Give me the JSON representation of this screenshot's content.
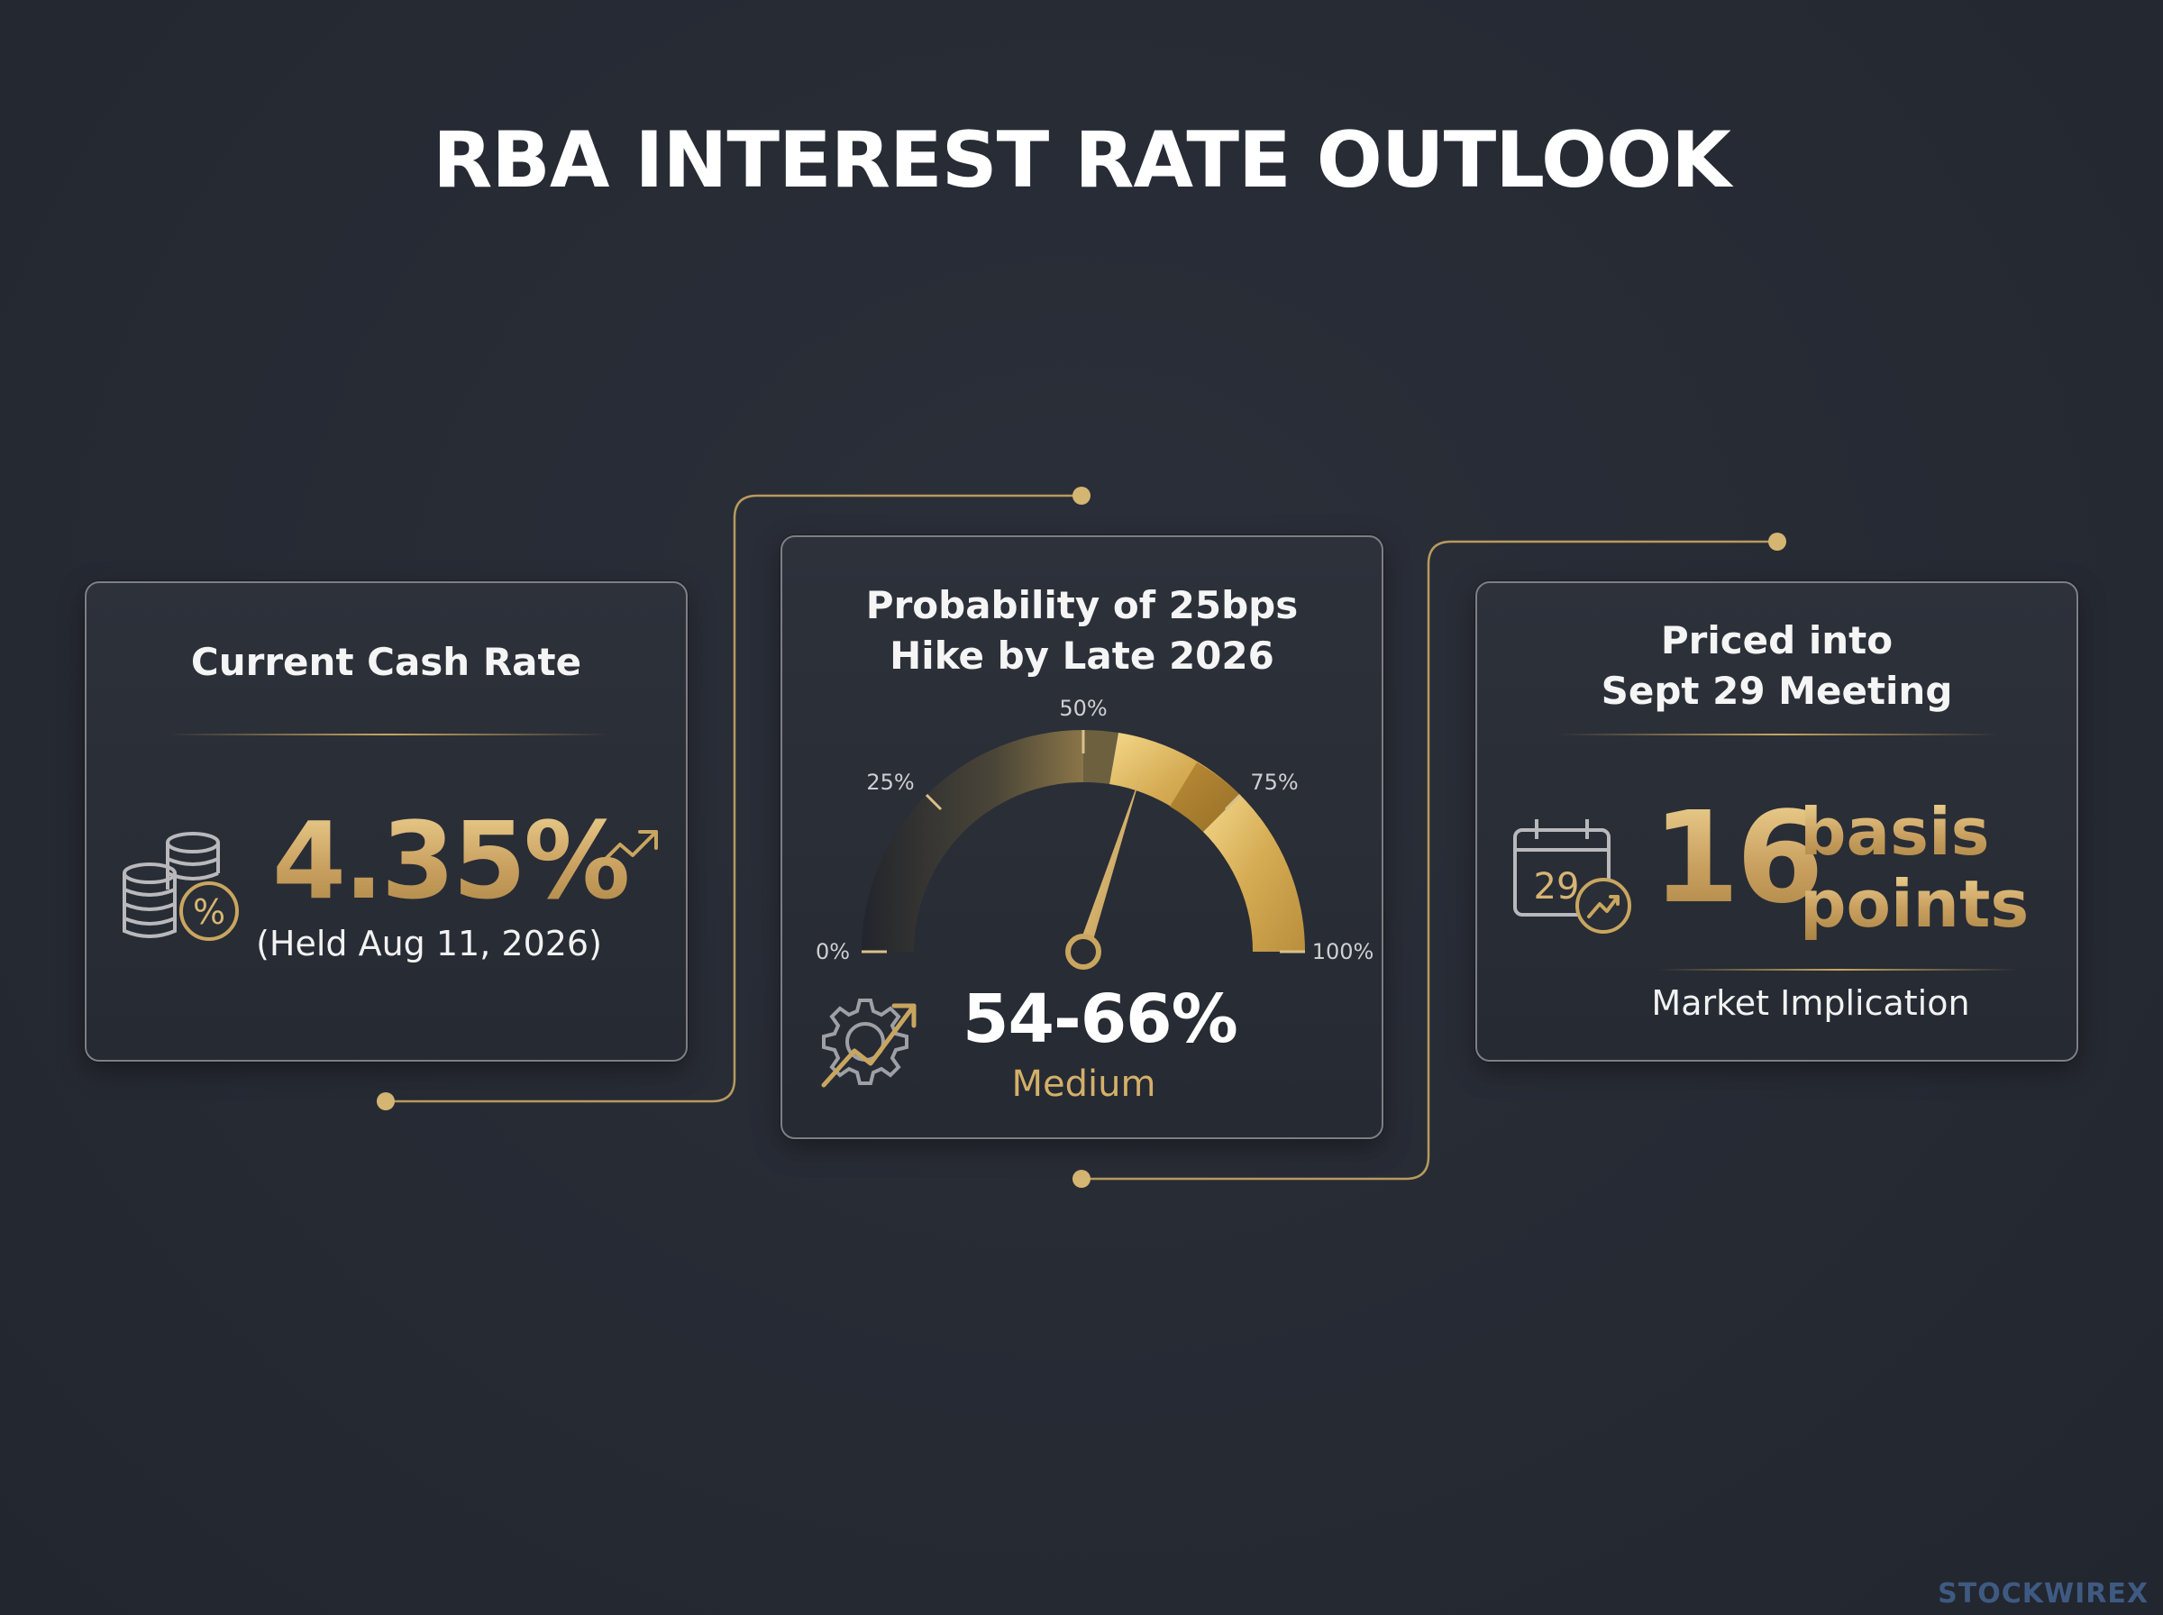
{
  "title": "RBA INTEREST RATE OUTLOOK",
  "colors": {
    "accent_gold": "#d4b06a",
    "background": "#262a33",
    "card_border": "#7d7f84"
  },
  "cards": {
    "current_rate": {
      "title": "Current Cash Rate",
      "value": "4.35%",
      "subtitle": "(Held Aug 11, 2026)",
      "icons": [
        "coins-percent-icon",
        "trend-up-icon"
      ]
    },
    "probability": {
      "title_line1": "Probability of 25bps",
      "title_line2": "Hike by Late 2026",
      "gauge": {
        "tick_labels": [
          "0%",
          "25%",
          "50%",
          "75%",
          "100%"
        ],
        "needle_value": 0.6,
        "highlight_range": [
          0.54,
          0.66
        ]
      },
      "value": "54-66%",
      "label": "Medium",
      "icon": "gear-trend-icon"
    },
    "priced_in": {
      "title_line1": "Priced into",
      "title_line2": "Sept 29 Meeting",
      "number": "16",
      "unit_line1": "basis",
      "unit_line2": "points",
      "caption": "Market Implication",
      "calendar_day": "29",
      "icon": "calendar-trend-icon"
    }
  },
  "watermark": "STOCKWIREX"
}
